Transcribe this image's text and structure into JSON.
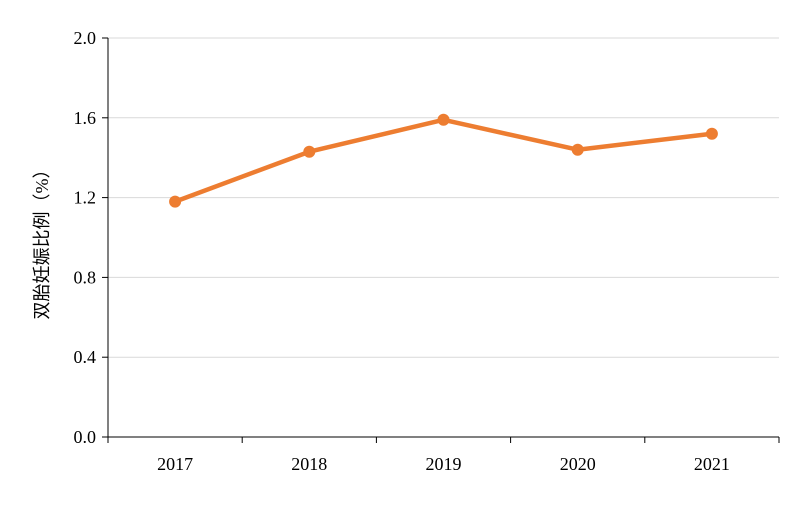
{
  "chart_data": {
    "type": "line",
    "categories": [
      "2017",
      "2018",
      "2019",
      "2020",
      "2021"
    ],
    "series": [
      {
        "values": [
          1.18,
          1.43,
          1.59,
          1.44,
          1.52
        ],
        "color": "#ED7D31"
      }
    ],
    "ylabel": "双胎妊娠比例（%）",
    "xlabel": "",
    "ylim": [
      0,
      2.0
    ],
    "yticks": [
      "0.0",
      "0.4",
      "0.8",
      "1.2",
      "1.6",
      "2.0"
    ],
    "grid": true,
    "colors": {
      "grid": "#D9D9D9",
      "axis": "#000000",
      "line": "#ED7D31"
    }
  }
}
